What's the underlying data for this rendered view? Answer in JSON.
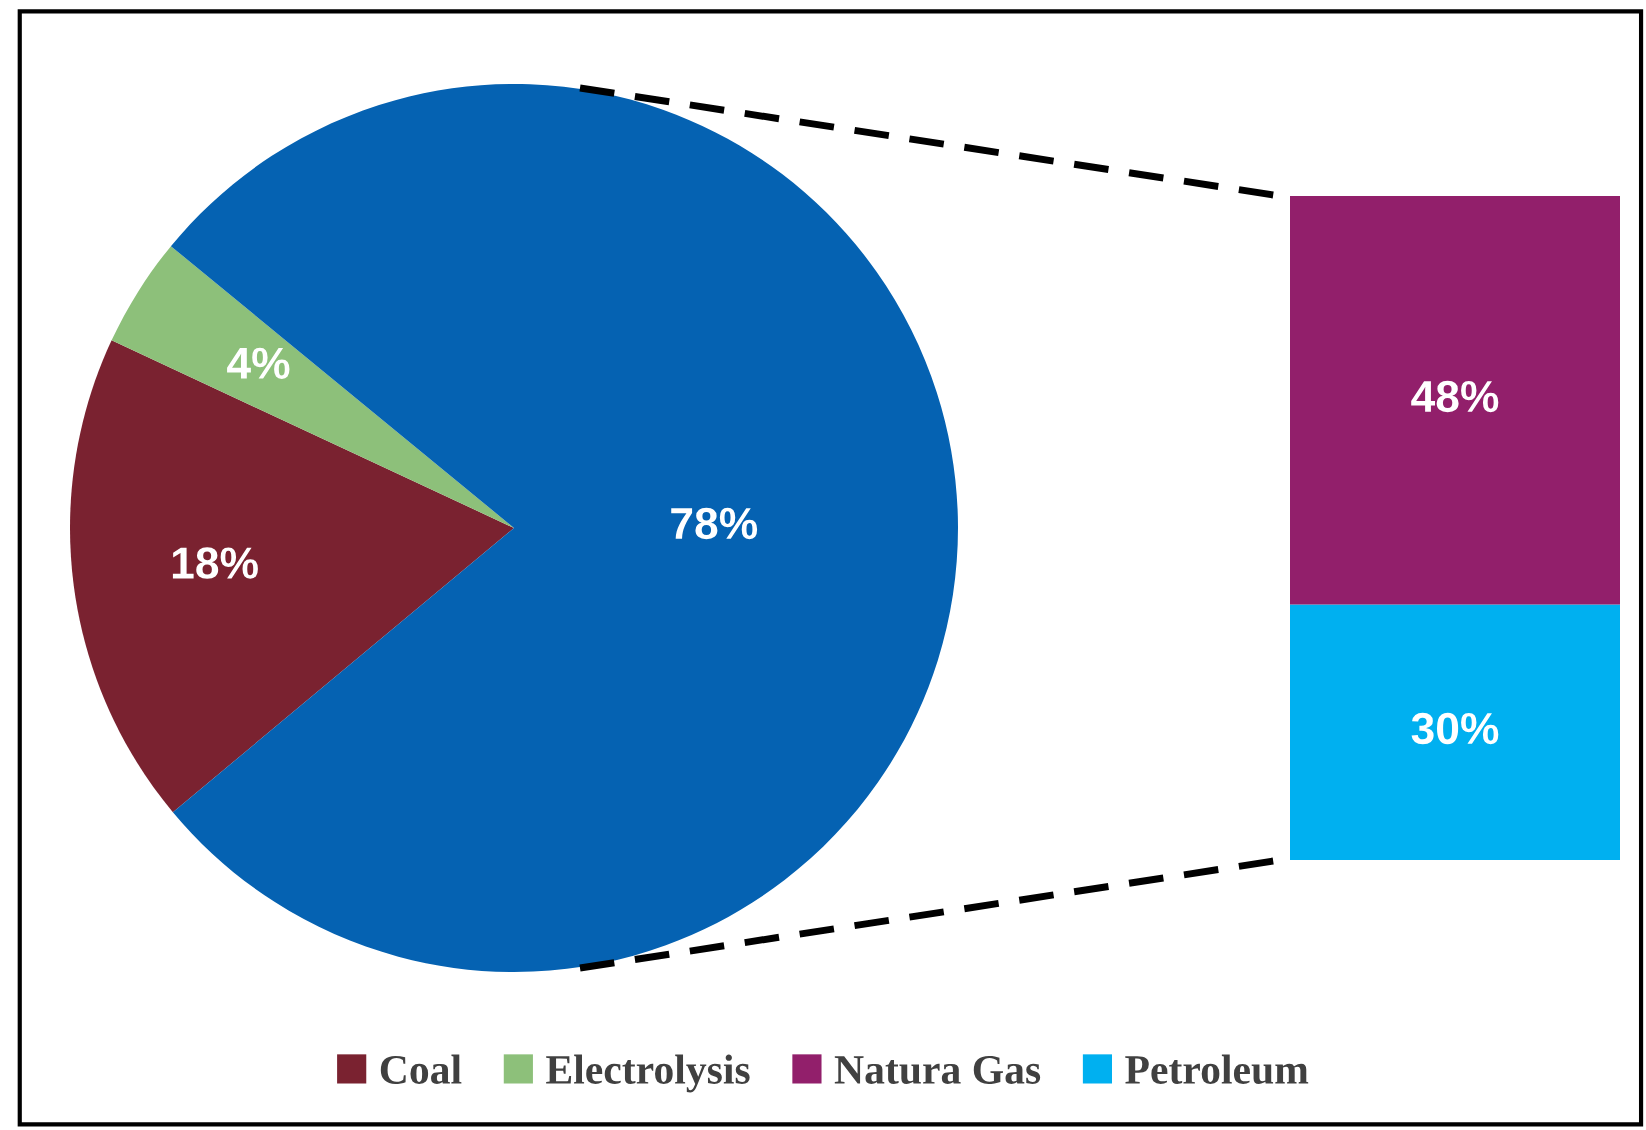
{
  "chart_data": [
    {
      "type": "pie",
      "categories": [
        "Coal",
        "Electrolysis",
        null
      ],
      "values": [
        18,
        4,
        78
      ],
      "value_labels": [
        "18%",
        "4%",
        "78%"
      ],
      "colors": [
        "#7a2230",
        "#8dc07a",
        "#0562b2"
      ],
      "legend": "bottom"
    },
    {
      "type": "bar",
      "stacked": true,
      "categories": [
        null
      ],
      "series": [
        {
          "name": "Petroleum",
          "color": "#00b0f0",
          "values": [
            30
          ],
          "value_labels": [
            "30%"
          ]
        },
        {
          "name": "Natura Gas",
          "color": "#921f6b",
          "values": [
            48
          ],
          "value_labels": [
            "48%"
          ]
        }
      ],
      "legend": "bottom"
    }
  ]
}
